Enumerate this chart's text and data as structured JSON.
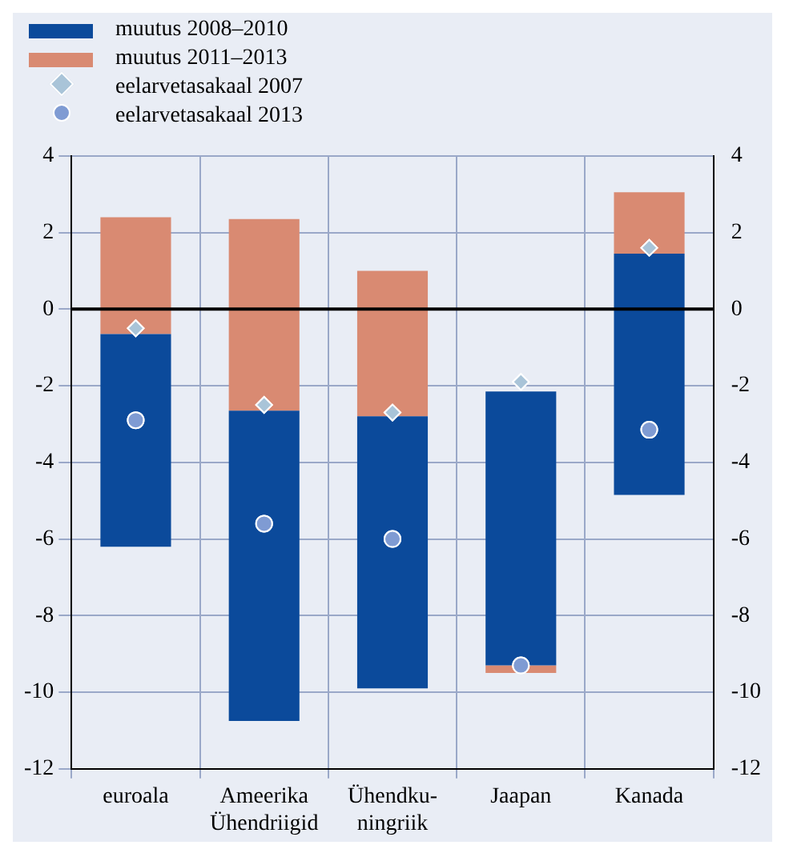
{
  "chart_data": {
    "type": "bar",
    "categories": [
      "euroala",
      "Ameerika\nÜhendriigid",
      "Ühendku-\nningriik",
      "Jaapan",
      "Kanada"
    ],
    "series": [
      {
        "name": "muutus 2008–2010",
        "color": "#0b4a9b",
        "base": [
          -0.65,
          -2.65,
          -2.8,
          -2.15,
          1.45
        ],
        "values": [
          -5.55,
          -8.1,
          -7.1,
          -7.15,
          -6.3
        ]
      },
      {
        "name": "muutus 2011–2013",
        "color": "#d98a72",
        "base": [
          -0.65,
          -2.65,
          -2.8,
          -9.3,
          1.45
        ],
        "values": [
          3.05,
          5.0,
          3.8,
          -0.2,
          1.6
        ]
      },
      {
        "name": "eelarvetasakaal 2007",
        "type": "scatter",
        "marker": "diamond",
        "color": "#a9c4d8",
        "values": [
          -0.5,
          -2.5,
          -2.7,
          -1.9,
          1.6
        ]
      },
      {
        "name": "eelarvetasakaal 2013",
        "type": "scatter",
        "marker": "circle",
        "color": "#7f9bd3",
        "values": [
          -2.9,
          -5.6,
          -6.0,
          -9.3,
          -3.15
        ]
      }
    ],
    "ylim": [
      -12,
      4
    ],
    "yticks": [
      -12,
      -10,
      -8,
      -6,
      -4,
      -2,
      0,
      2,
      4
    ],
    "y2lim": [
      -12,
      4
    ],
    "y2ticks": [
      -12,
      -10,
      -8,
      -6,
      -4,
      -2,
      0,
      2,
      4
    ],
    "grid": true,
    "legend": "top left",
    "ref_lines": [
      {
        "axis": "y",
        "value": 0,
        "color": "#000000"
      }
    ]
  }
}
